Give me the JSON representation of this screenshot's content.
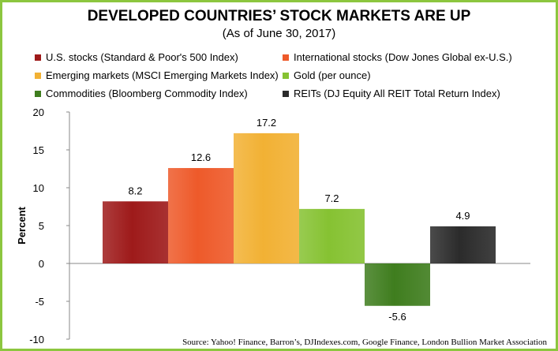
{
  "chart_data": {
    "type": "bar",
    "title": "DEVELOPED COUNTRIES’  STOCK MARKETS ARE UP",
    "subtitle": "(As of June 30, 2017)",
    "ylabel": "Percent",
    "xlabel": "",
    "ylim": [
      -10,
      20
    ],
    "yticks": [
      "20",
      "15",
      "10",
      "5",
      "0",
      "-5",
      "-10"
    ],
    "ytick_values": [
      20,
      15,
      10,
      5,
      0,
      -5,
      -10
    ],
    "categories": [
      "U.S. stocks (Standard & Poor's 500 Index)",
      "International stocks (Dow Jones Global ex-U.S.)",
      "Emerging markets (MSCI Emerging Markets Index)",
      "Gold (per ounce)",
      "Commodities (Bloomberg Commodity Index)",
      "REITs (DJ Equity All REIT Total Return Index)"
    ],
    "values": [
      8.2,
      12.6,
      17.2,
      7.2,
      -5.6,
      4.9
    ],
    "value_labels": [
      "8.2",
      "12.6",
      "17.2",
      "7.2",
      "-5.6",
      "4.9"
    ],
    "colors": [
      "#9e1a1a",
      "#ee5a2a",
      "#f2b134",
      "#86c232",
      "#3f7d1e",
      "#2b2b2b"
    ],
    "grid": false,
    "legend_position": "top"
  },
  "source": "Source: Yahoo! Finance, Barron’s, DJIndexes.com, Google Finance, London Bullion Market Association",
  "frame_color": "#8cc63f"
}
